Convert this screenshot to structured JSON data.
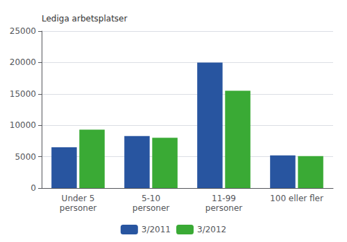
{
  "chart_data": {
    "type": "bar",
    "ylabel": "Lediga arbetsplatser",
    "categories": [
      "Under 5\npersoner",
      "5-10\npersoner",
      "11-99\npersoner",
      "100 eller fler"
    ],
    "series": [
      {
        "name": "3/2011",
        "color": "#2855a0",
        "values": [
          6500,
          8300,
          20000,
          5200
        ]
      },
      {
        "name": "3/2012",
        "color": "#3aaa35",
        "values": [
          9300,
          8000,
          15500,
          5100
        ]
      }
    ],
    "ylim": [
      0,
      25000
    ],
    "yticks": [
      0,
      5000,
      10000,
      15000,
      20000,
      25000
    ],
    "grid": true,
    "legend": "bottom"
  }
}
